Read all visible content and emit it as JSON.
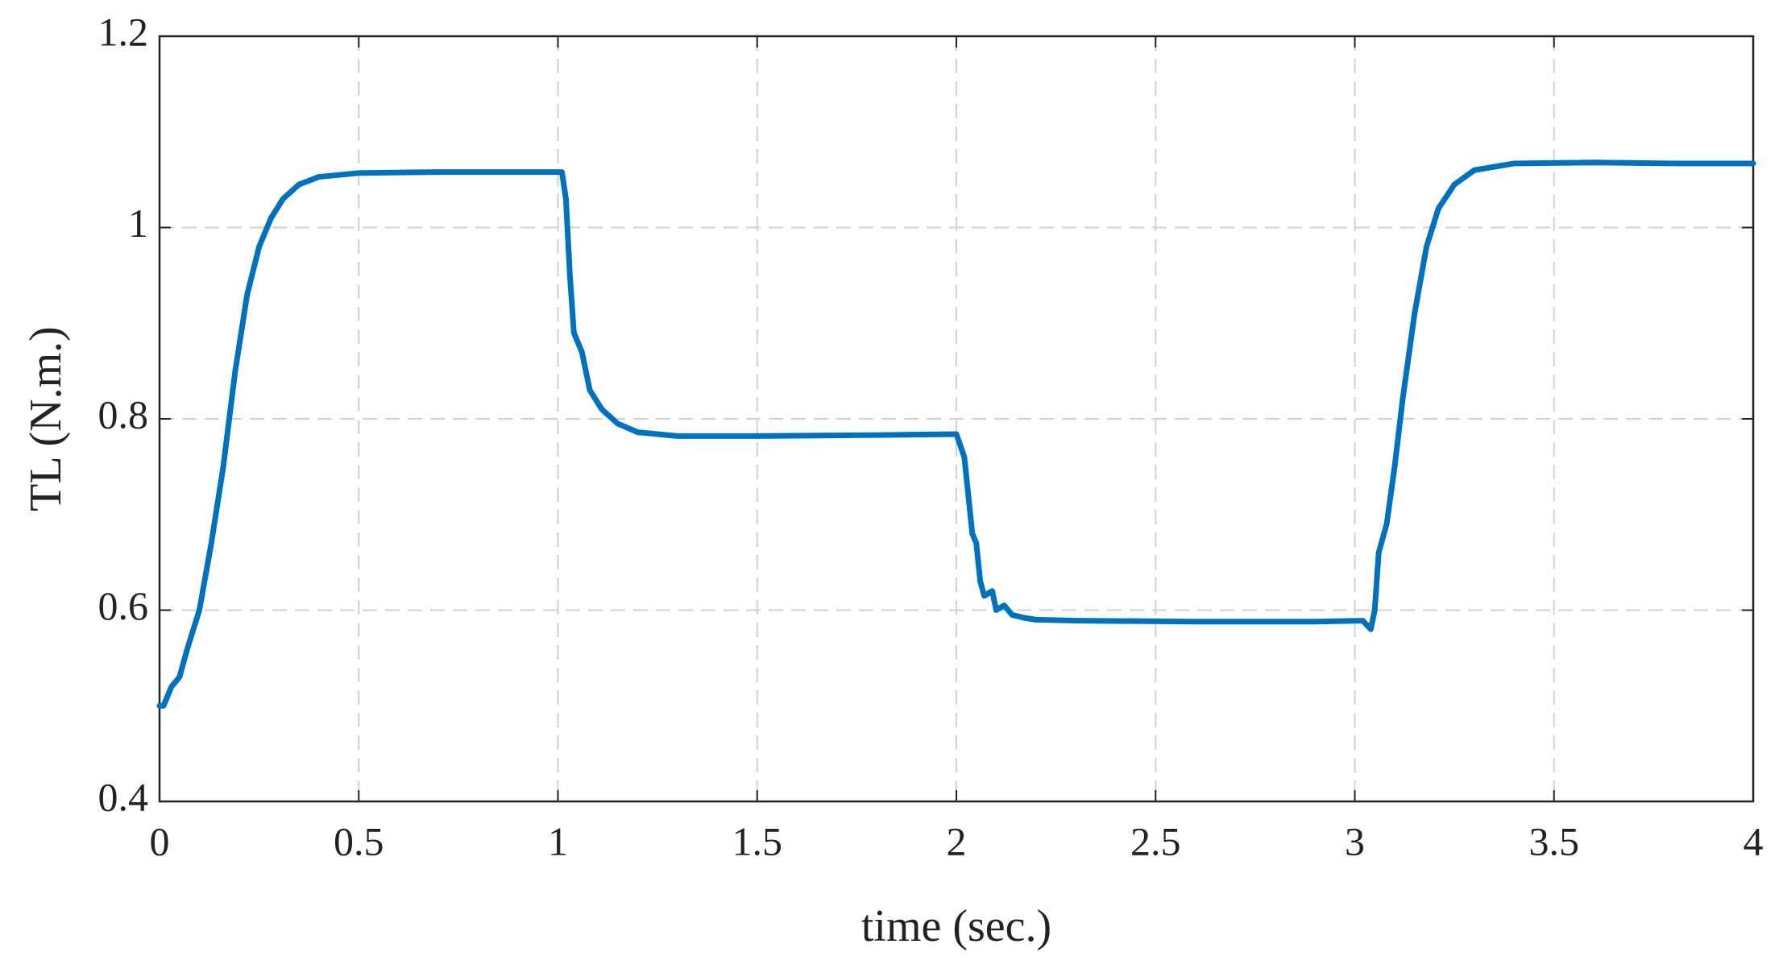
{
  "chart_data": {
    "type": "line",
    "x_label": "time (sec.)",
    "y_label": "TL (N.m.)",
    "xlim": [
      0,
      4
    ],
    "xticks": [
      0,
      0.5,
      1,
      1.5,
      2,
      2.5,
      3,
      3.5,
      4
    ],
    "ylim": [
      0.4,
      1.2
    ],
    "yticks": [
      0.4,
      0.6,
      0.8,
      1,
      1.2
    ],
    "grid": true,
    "series": [
      {
        "color": "#0072bd",
        "x": [
          0,
          0.01,
          0.03,
          0.05,
          0.07,
          0.1,
          0.13,
          0.16,
          0.19,
          0.22,
          0.25,
          0.28,
          0.31,
          0.35,
          0.4,
          0.5,
          0.7,
          0.9,
          1.01,
          1.02,
          1.03,
          1.04,
          1.06,
          1.08,
          1.11,
          1.15,
          1.2,
          1.3,
          1.5,
          1.8,
          2.0,
          2.02,
          2.03,
          2.04,
          2.05,
          2.06,
          2.07,
          2.09,
          2.1,
          2.12,
          2.14,
          2.17,
          2.2,
          2.3,
          2.6,
          2.9,
          3.02,
          3.04,
          3.05,
          3.06,
          3.08,
          3.1,
          3.12,
          3.15,
          3.18,
          3.21,
          3.25,
          3.3,
          3.4,
          3.6,
          3.8,
          4
        ],
        "values": [
          0.5,
          0.5,
          0.52,
          0.53,
          0.56,
          0.6,
          0.67,
          0.75,
          0.85,
          0.93,
          0.98,
          1.01,
          1.03,
          1.045,
          1.053,
          1.057,
          1.058,
          1.058,
          1.058,
          1.03,
          0.95,
          0.89,
          0.87,
          0.83,
          0.81,
          0.795,
          0.786,
          0.782,
          0.782,
          0.783,
          0.784,
          0.76,
          0.72,
          0.68,
          0.67,
          0.63,
          0.615,
          0.62,
          0.6,
          0.605,
          0.595,
          0.592,
          0.59,
          0.589,
          0.588,
          0.588,
          0.589,
          0.58,
          0.6,
          0.66,
          0.69,
          0.75,
          0.82,
          0.91,
          0.98,
          1.02,
          1.045,
          1.06,
          1.067,
          1.068,
          1.067,
          1.067
        ]
      }
    ]
  }
}
